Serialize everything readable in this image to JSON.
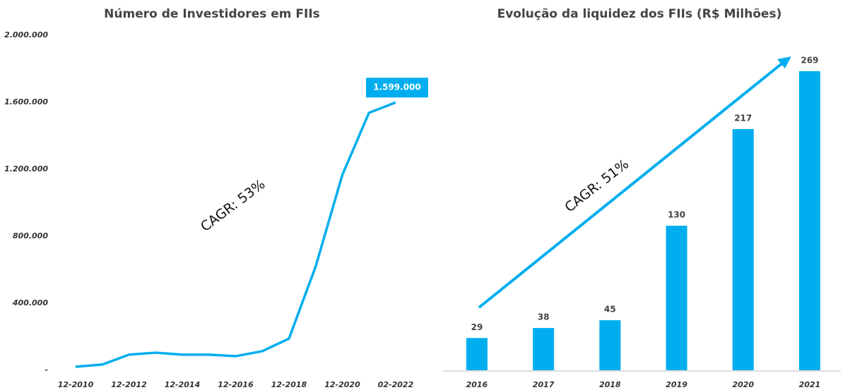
{
  "chart_data": [
    {
      "type": "line",
      "title": "Número de Investidores em FIIs",
      "categories": [
        "12-2010",
        null,
        "12-2012",
        null,
        "12-2014",
        null,
        "12-2016",
        null,
        "12-2018",
        null,
        "12-2020",
        null,
        "02-2022"
      ],
      "series": [
        {
          "color": "#00aeef",
          "values": [
            21000,
            34000,
            93000,
            105000,
            93000,
            93000,
            84000,
            114000,
            189000,
            619000,
            1166000,
            1537000,
            1599000
          ],
          "value_labels": [
            null,
            null,
            null,
            null,
            null,
            null,
            null,
            null,
            null,
            null,
            null,
            null,
            "1.599.000"
          ]
        }
      ],
      "ylim": [
        0,
        2000000
      ],
      "yticks": [
        {
          "value": 0,
          "label": "-"
        },
        {
          "value": 400000,
          "label": "400.000"
        },
        {
          "value": 800000,
          "label": "800.000"
        },
        {
          "value": 1200000,
          "label": "1.200.000"
        },
        {
          "value": 1600000,
          "label": "1.600.000"
        },
        {
          "value": 2000000,
          "label": "2.000.000"
        }
      ],
      "annotation": "CAGR: 53%"
    },
    {
      "type": "bar",
      "title": "Evolução da liquidez dos FIIs (R$ Milhões)",
      "categories": [
        "2016",
        "2017",
        "2018",
        "2019",
        "2020",
        "2021"
      ],
      "values": [
        29,
        38,
        45,
        130,
        217,
        269
      ],
      "color": "#00aeef",
      "annotation": "CAGR: 51%"
    }
  ]
}
